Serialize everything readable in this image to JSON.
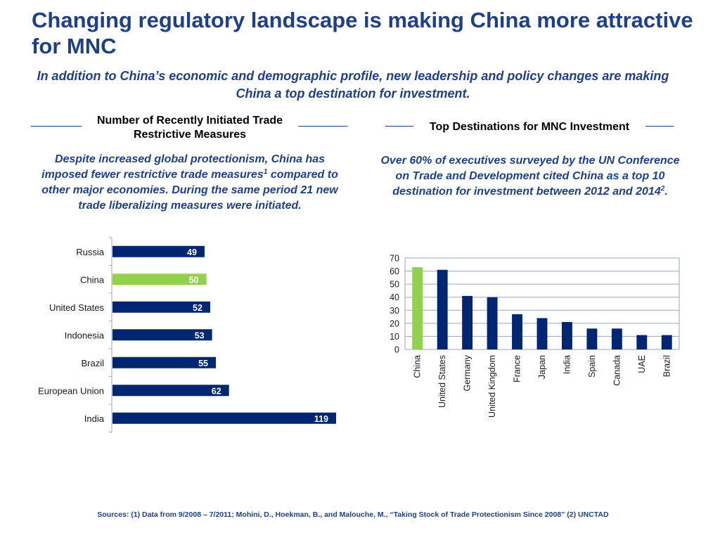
{
  "header": {
    "title": "Changing regulatory landscape is making China more attractive for MNC",
    "subtitle": "In addition to China’s economic and demographic profile, new leadership and policy changes are making China a top destination for investment."
  },
  "left": {
    "heading": "Number of Recently Initiated Trade Restrictive Measures",
    "desc_part1": "Despite increased global protectionism, China has imposed fewer restrictive trade measures",
    "desc_sup": "1",
    "desc_part2": " compared to other major economies. During the same period 21 new trade liberalizing measures were initiated."
  },
  "right": {
    "heading": "Top Destinations for MNC Investment",
    "desc_part1": "Over 60% of executives surveyed by the UN Conference on Trade and Development cited China as a top 10 destination for investment between 2012 and 2014",
    "desc_sup": "2",
    "desc_part2": "."
  },
  "sources": "Sources: (1) Data from 9/2008 – 7/2011; Mohini, D., Hoekman, B., and Malouche, M., “Taking Stock of Trade Protectionism Since 2008” (2) UNCTAD",
  "colors": {
    "navy": "#002672",
    "highlight": "#92d050",
    "title": "#1f3f86"
  },
  "chart_data": [
    {
      "type": "bar",
      "orientation": "horizontal",
      "title": "Number of Recently Initiated Trade Restrictive Measures",
      "categories": [
        "Russia",
        "China",
        "United States",
        "Indonesia",
        "Brazil",
        "European Union",
        "India"
      ],
      "values": [
        49,
        50,
        52,
        53,
        55,
        62,
        119
      ],
      "highlight": "China",
      "data_labels": true,
      "xlim": [
        0,
        119
      ]
    },
    {
      "type": "bar",
      "orientation": "vertical",
      "title": "Top Destinations for MNC Investment",
      "categories": [
        "China",
        "United States",
        "Germany",
        "United Kingdom",
        "France",
        "Japan",
        "India",
        "Spain",
        "Canada",
        "UAE",
        "Brazil"
      ],
      "values": [
        63,
        61,
        41,
        40,
        27,
        24,
        21,
        16,
        16,
        11,
        11
      ],
      "highlight": "China",
      "ylim": [
        0,
        70
      ],
      "yticks": [
        0,
        10,
        20,
        30,
        40,
        50,
        60,
        70
      ],
      "grid": true
    }
  ]
}
